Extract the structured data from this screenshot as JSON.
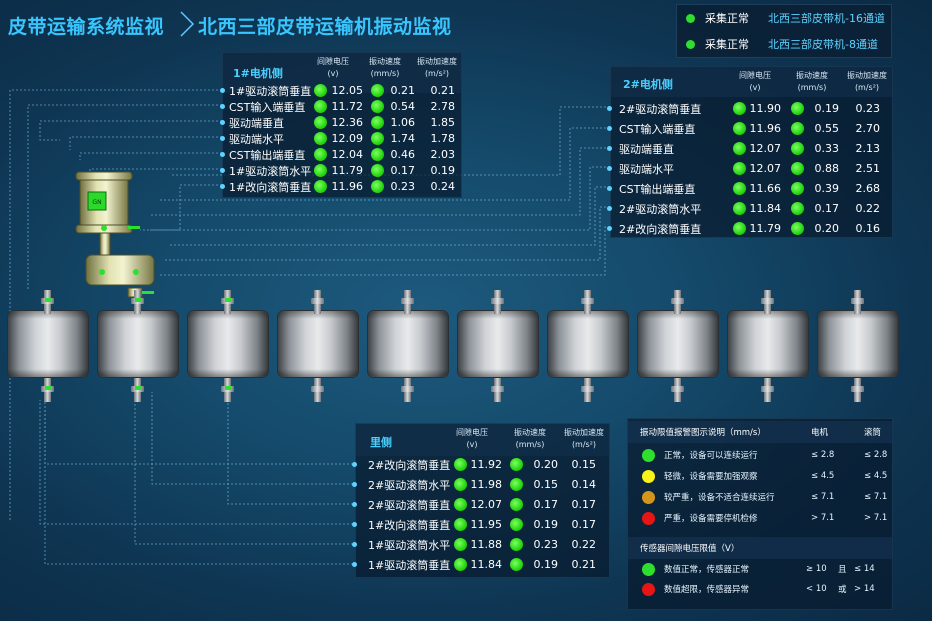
{
  "header": {
    "title": "皮带运输系统监视",
    "subtitle": "北西三部皮带运输机振动监视"
  },
  "status": [
    {
      "label": "采集正常",
      "channel": "北西三部皮带机-16通道",
      "color": "#2ee02e"
    },
    {
      "label": "采集正常",
      "channel": "北西三部皮带机-8通道",
      "color": "#2ee02e"
    }
  ],
  "columns": {
    "voltage": "间隙电压",
    "voltage_unit": "(v)",
    "velocity": "振动速度",
    "velocity_unit": "(mm/s)",
    "accel": "振动加速度",
    "accel_unit": "(m/s²)"
  },
  "motor1": {
    "title": "1#电机侧",
    "rows": [
      {
        "name": "1#驱动滚筒垂直",
        "voltage": "12.05",
        "velocity": "0.21",
        "accel": "0.21"
      },
      {
        "name": "CST输入端垂直",
        "voltage": "11.72",
        "velocity": "0.54",
        "accel": "2.78"
      },
      {
        "name": "驱动端垂直",
        "voltage": "12.36",
        "velocity": "1.06",
        "accel": "1.85"
      },
      {
        "name": "驱动端水平",
        "voltage": "12.09",
        "velocity": "1.74",
        "accel": "1.78"
      },
      {
        "name": "CST输出端垂直",
        "voltage": "12.04",
        "velocity": "0.46",
        "accel": "2.03"
      },
      {
        "name": "1#驱动滚筒水平",
        "voltage": "11.79",
        "velocity": "0.17",
        "accel": "0.19"
      },
      {
        "name": "1#改向滚筒垂直",
        "voltage": "11.96",
        "velocity": "0.23",
        "accel": "0.24"
      }
    ]
  },
  "motor2": {
    "title": "2#电机侧",
    "rows": [
      {
        "name": "2#驱动滚筒垂直",
        "voltage": "11.90",
        "velocity": "0.19",
        "accel": "0.23"
      },
      {
        "name": "CST输入端垂直",
        "voltage": "11.96",
        "velocity": "0.55",
        "accel": "2.70"
      },
      {
        "name": "驱动端垂直",
        "voltage": "12.07",
        "velocity": "0.33",
        "accel": "2.13"
      },
      {
        "name": "驱动端水平",
        "voltage": "12.07",
        "velocity": "0.88",
        "accel": "2.51"
      },
      {
        "name": "CST输出端垂直",
        "voltage": "11.66",
        "velocity": "0.39",
        "accel": "2.68"
      },
      {
        "name": "2#驱动滚筒水平",
        "voltage": "11.84",
        "velocity": "0.17",
        "accel": "0.22"
      },
      {
        "name": "2#改向滚筒垂直",
        "voltage": "11.79",
        "velocity": "0.20",
        "accel": "0.16"
      }
    ]
  },
  "inner": {
    "title": "里侧",
    "rows": [
      {
        "name": "2#改向滚筒垂直",
        "voltage": "11.92",
        "velocity": "0.20",
        "accel": "0.15"
      },
      {
        "name": "2#驱动滚筒水平",
        "voltage": "11.98",
        "velocity": "0.15",
        "accel": "0.14"
      },
      {
        "name": "2#驱动滚筒垂直",
        "voltage": "12.07",
        "velocity": "0.17",
        "accel": "0.17"
      },
      {
        "name": "1#改向滚筒垂直",
        "voltage": "11.95",
        "velocity": "0.19",
        "accel": "0.17"
      },
      {
        "name": "1#驱动滚筒水平",
        "voltage": "11.88",
        "velocity": "0.23",
        "accel": "0.22"
      },
      {
        "name": "1#驱动滚筒垂直",
        "voltage": "11.84",
        "velocity": "0.19",
        "accel": "0.21"
      }
    ]
  },
  "motor_label": "GN",
  "legend": {
    "title": "振动限值报警图示说明（mm/s）",
    "col_motor": "电机",
    "col_drum": "滚筒",
    "rows": [
      {
        "text": "正常，设备可以连续运行",
        "motor": "≤ 2.8",
        "drum": "≤ 2.8",
        "color": "#2ee02e"
      },
      {
        "text": "轻微，设备需要加强观察",
        "motor": "≤ 4.5",
        "drum": "≤ 4.5",
        "color": "#f6f21a"
      },
      {
        "text": "较严重，设备不适合连续运行",
        "motor": "≤ 7.1",
        "drum": "≤ 7.1",
        "color": "#d4951a"
      },
      {
        "text": "严重，设备需要停机检修",
        "motor": "> 7.1",
        "drum": "> 7.1",
        "color": "#e81515"
      }
    ],
    "sensor_title": "传感器间隙电压限值（V）",
    "sensor_rows": [
      {
        "text": "数值正常，传感器正常",
        "a": "≥ 10",
        "op": "且",
        "b": "≤ 14",
        "color": "#2ee02e"
      },
      {
        "text": "数值超限，传感器异常",
        "a": "< 10",
        "op": "或",
        "b": "> 14",
        "color": "#e81515"
      }
    ]
  }
}
